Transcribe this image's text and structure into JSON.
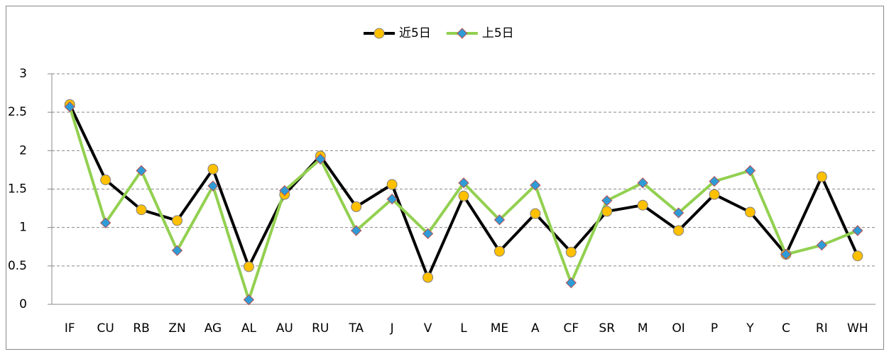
{
  "chart_data": {
    "type": "line",
    "categories": [
      "IF",
      "CU",
      "RB",
      "ZN",
      "AG",
      "AL",
      "AU",
      "RU",
      "TA",
      "J",
      "V",
      "L",
      "ME",
      "A",
      "CF",
      "SR",
      "M",
      "OI",
      "P",
      "Y",
      "C",
      "RI",
      "WH"
    ],
    "series": [
      {
        "name": "近5日",
        "color": "#000000",
        "marker": "circle",
        "marker_color": "#FFC000",
        "values": [
          2.6,
          1.62,
          1.23,
          1.09,
          1.76,
          0.49,
          1.43,
          1.93,
          1.27,
          1.56,
          0.35,
          1.41,
          0.69,
          1.18,
          0.68,
          1.21,
          1.29,
          0.96,
          1.43,
          1.2,
          0.65,
          1.66,
          0.63
        ]
      },
      {
        "name": "上5日",
        "color": "#92D050",
        "marker": "diamond",
        "marker_color": "#2E9BD6",
        "values": [
          2.57,
          1.06,
          1.74,
          0.7,
          1.54,
          0.06,
          1.48,
          1.89,
          0.96,
          1.37,
          0.92,
          1.58,
          1.1,
          1.55,
          0.28,
          1.35,
          1.58,
          1.19,
          1.6,
          1.74,
          0.65,
          0.77,
          0.96
        ]
      }
    ],
    "ylim": [
      0,
      3
    ],
    "yticks": [
      0,
      0.5,
      1,
      1.5,
      2,
      2.5,
      3
    ],
    "grid": true,
    "legend": "top"
  }
}
